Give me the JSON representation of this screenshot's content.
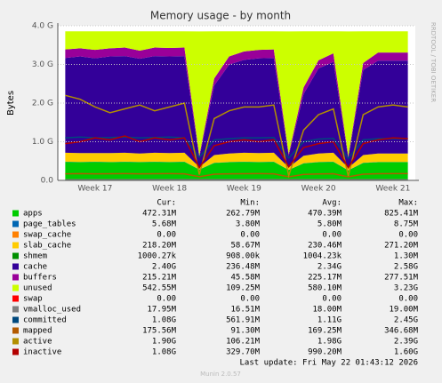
{
  "chart_data": {
    "type": "area",
    "title": "Memory usage - by month",
    "y_label": "Bytes",
    "side_label": "RRDTOOL / TOBI OETIKER",
    "footer": "Last update: Fri May 22 01:43:12 2026",
    "version": "Munin 2.0.57",
    "legend_columns": [
      "Cur:",
      "Min:",
      "Avg:",
      "Max:"
    ],
    "grid": true,
    "ylim": [
      0,
      4000000000
    ],
    "yticks": [
      {
        "value": 0,
        "label": "0.0"
      },
      {
        "value": 1000000000,
        "label": "1.0 G"
      },
      {
        "value": 2000000000,
        "label": "2.0 G"
      },
      {
        "value": 3000000000,
        "label": "3.0 G"
      },
      {
        "value": 4000000000,
        "label": "4.0 G"
      }
    ],
    "categories": [
      null,
      null,
      "Week 17",
      null,
      null,
      null,
      null,
      "Week 18",
      null,
      null,
      null,
      null,
      "Week 19",
      null,
      null,
      null,
      null,
      "Week 20",
      null,
      null,
      null,
      null,
      "Week 21",
      null
    ],
    "series": [
      {
        "name": "apps",
        "color": "#00CC00",
        "kind": "stack",
        "stats": [
          "472.31M",
          "262.79M",
          "470.39M",
          "825.41M"
        ],
        "values": [
          480000000,
          470000000,
          480000000,
          470000000,
          480000000,
          470000000,
          480000000,
          470000000,
          480000000,
          280000000,
          450000000,
          470000000,
          480000000,
          470000000,
          480000000,
          270000000,
          440000000,
          470000000,
          480000000,
          260000000,
          450000000,
          470000000,
          470000000,
          470000000
        ]
      },
      {
        "name": "page_tables",
        "color": "#0066B3",
        "kind": "stack",
        "stats": [
          "5.68M",
          "3.80M",
          "5.80M",
          "8.75M"
        ],
        "values": [
          5700000,
          5700000,
          5700000,
          5700000,
          5700000,
          5700000,
          5700000,
          5700000,
          5700000,
          3800000,
          5600000,
          5700000,
          5700000,
          5700000,
          5700000,
          3800000,
          5600000,
          5700000,
          5700000,
          3800000,
          5600000,
          5700000,
          5700000,
          5700000
        ]
      },
      {
        "name": "swap_cache",
        "color": "#FF8000",
        "kind": "stack",
        "stats": [
          "0.00",
          "0.00",
          "0.00",
          "0.00"
        ],
        "values": [
          0,
          0,
          0,
          0,
          0,
          0,
          0,
          0,
          0,
          0,
          0,
          0,
          0,
          0,
          0,
          0,
          0,
          0,
          0,
          0,
          0,
          0,
          0,
          0
        ]
      },
      {
        "name": "slab_cache",
        "color": "#FFCC00",
        "kind": "stack",
        "stats": [
          "218.20M",
          "58.67M",
          "230.46M",
          "271.20M"
        ],
        "values": [
          230000000,
          230000000,
          220000000,
          230000000,
          230000000,
          220000000,
          230000000,
          230000000,
          230000000,
          60000000,
          200000000,
          220000000,
          230000000,
          230000000,
          230000000,
          60000000,
          190000000,
          220000000,
          230000000,
          60000000,
          200000000,
          220000000,
          220000000,
          220000000
        ]
      },
      {
        "name": "shmem",
        "color": "#008F00",
        "kind": "stack",
        "stats": [
          "1000.27k",
          "908.00k",
          "1004.23k",
          "1.30M"
        ],
        "values": [
          1000000,
          1000000,
          1000000,
          1000000,
          1000000,
          1000000,
          1000000,
          1000000,
          1000000,
          908000,
          1000000,
          1000000,
          1000000,
          1000000,
          1000000,
          908000,
          1000000,
          1000000,
          1000000,
          908000,
          1000000,
          1000000,
          1000000,
          1000000
        ]
      },
      {
        "name": "cache",
        "color": "#330099",
        "kind": "stack",
        "stats": [
          "2.40G",
          "236.48M",
          "2.34G",
          "2.58G"
        ],
        "values": [
          2450000000,
          2500000000,
          2450000000,
          2500000000,
          2500000000,
          2450000000,
          2500000000,
          2500000000,
          2500000000,
          250000000,
          1800000000,
          2300000000,
          2400000000,
          2450000000,
          2450000000,
          300000000,
          1600000000,
          2200000000,
          2350000000,
          250000000,
          2200000000,
          2400000000,
          2400000000,
          2400000000
        ]
      },
      {
        "name": "buffers",
        "color": "#990099",
        "kind": "stack",
        "stats": [
          "215.21M",
          "45.58M",
          "225.17M",
          "277.51M"
        ],
        "values": [
          220000000,
          210000000,
          220000000,
          210000000,
          220000000,
          210000000,
          220000000,
          220000000,
          220000000,
          50000000,
          180000000,
          210000000,
          220000000,
          220000000,
          220000000,
          50000000,
          170000000,
          210000000,
          220000000,
          50000000,
          180000000,
          210000000,
          210000000,
          210000000
        ]
      },
      {
        "name": "unused",
        "color": "#CCFF00",
        "kind": "stack",
        "stats": [
          "542.55M",
          "109.25M",
          "580.10M",
          "3.23G"
        ],
        "values": [
          470000000,
          440000000,
          480000000,
          440000000,
          420000000,
          500000000,
          420000000,
          430000000,
          420000000,
          3210000000,
          1220000000,
          650000000,
          520000000,
          480000000,
          470000000,
          3170000000,
          1450000000,
          750000000,
          570000000,
          3230000000,
          820000000,
          550000000,
          550000000,
          550000000
        ]
      },
      {
        "name": "swap",
        "color": "#FF0000",
        "kind": "stack",
        "stats": [
          "0.00",
          "0.00",
          "0.00",
          "0.00"
        ],
        "values": [
          0,
          0,
          0,
          0,
          0,
          0,
          0,
          0,
          0,
          0,
          0,
          0,
          0,
          0,
          0,
          0,
          0,
          0,
          0,
          0,
          0,
          0,
          0,
          0
        ]
      },
      {
        "name": "vmalloc_used",
        "color": "#808080",
        "kind": "line",
        "stats": [
          "17.95M",
          "16.51M",
          "18.00M",
          "19.00M"
        ],
        "values": [
          18000000,
          18000000,
          18000000,
          18000000,
          18000000,
          18000000,
          18000000,
          18000000,
          18000000,
          16500000,
          18000000,
          18000000,
          18000000,
          18000000,
          18000000,
          16500000,
          18000000,
          18000000,
          18000000,
          16500000,
          18000000,
          18000000,
          18000000,
          18000000
        ]
      },
      {
        "name": "committed",
        "color": "#00487D",
        "kind": "line",
        "stats": [
          "1.08G",
          "561.91M",
          "1.11G",
          "2.45G"
        ],
        "values": [
          1100000000,
          1120000000,
          1100000000,
          1110000000,
          1120000000,
          1100000000,
          1110000000,
          1120000000,
          1100000000,
          600000000,
          1050000000,
          1080000000,
          1100000000,
          1100000000,
          1110000000,
          580000000,
          1000000000,
          1070000000,
          1090000000,
          570000000,
          1050000000,
          1080000000,
          1080000000,
          1080000000
        ]
      },
      {
        "name": "mapped",
        "color": "#B35A00",
        "kind": "line",
        "stats": [
          "175.56M",
          "91.30M",
          "169.25M",
          "346.68M"
        ],
        "values": [
          170000000,
          175000000,
          170000000,
          172000000,
          175000000,
          170000000,
          172000000,
          175000000,
          170000000,
          95000000,
          160000000,
          170000000,
          172000000,
          175000000,
          170000000,
          92000000,
          155000000,
          168000000,
          172000000,
          91000000,
          160000000,
          172000000,
          175000000,
          175000000
        ]
      },
      {
        "name": "active",
        "color": "#B38F00",
        "kind": "line",
        "stats": [
          "1.90G",
          "106.21M",
          "1.98G",
          "2.39G"
        ],
        "values": [
          2200000000,
          2100000000,
          1900000000,
          1750000000,
          1850000000,
          1950000000,
          1800000000,
          1900000000,
          2000000000,
          150000000,
          1600000000,
          1800000000,
          1900000000,
          1900000000,
          1950000000,
          120000000,
          1300000000,
          1700000000,
          1850000000,
          110000000,
          1700000000,
          1900000000,
          1950000000,
          1900000000
        ]
      },
      {
        "name": "inactive",
        "color": "#B30000",
        "kind": "line",
        "stats": [
          "1.08G",
          "329.70M",
          "990.20M",
          "1.60G"
        ],
        "values": [
          950000000,
          1000000000,
          1100000000,
          1050000000,
          1150000000,
          1000000000,
          1100000000,
          1050000000,
          1100000000,
          330000000,
          900000000,
          1000000000,
          1050000000,
          1000000000,
          1050000000,
          350000000,
          850000000,
          950000000,
          1000000000,
          330000000,
          950000000,
          1050000000,
          1100000000,
          1080000000
        ]
      }
    ]
  }
}
